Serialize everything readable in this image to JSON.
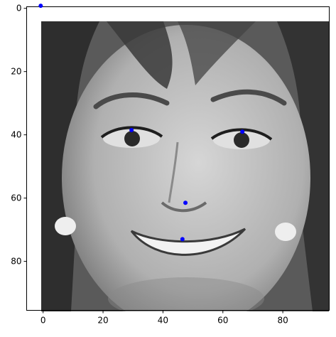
{
  "chart_data": {
    "type": "scatter",
    "title": "",
    "xlabel": "",
    "ylabel": "",
    "background_image": {
      "description_icon": "grayscale-face-image",
      "width": 96,
      "height": 96
    },
    "xlim": [
      -5.5,
      95.5
    ],
    "ylim": [
      95.5,
      -0.5
    ],
    "y_inverted": true,
    "x_ticks": [
      0,
      20,
      40,
      60,
      80
    ],
    "y_ticks": [
      0,
      20,
      40,
      60,
      80
    ],
    "grid": false,
    "series": [
      {
        "color": "#0000ff",
        "marker": "circle",
        "points": [
          {
            "x": -0.8,
            "y": -0.8
          },
          {
            "x": 29.5,
            "y": 38.5
          },
          {
            "x": 66.5,
            "y": 39.0
          },
          {
            "x": 47.5,
            "y": 61.5
          },
          {
            "x": 46.5,
            "y": 73.0
          }
        ]
      }
    ]
  }
}
